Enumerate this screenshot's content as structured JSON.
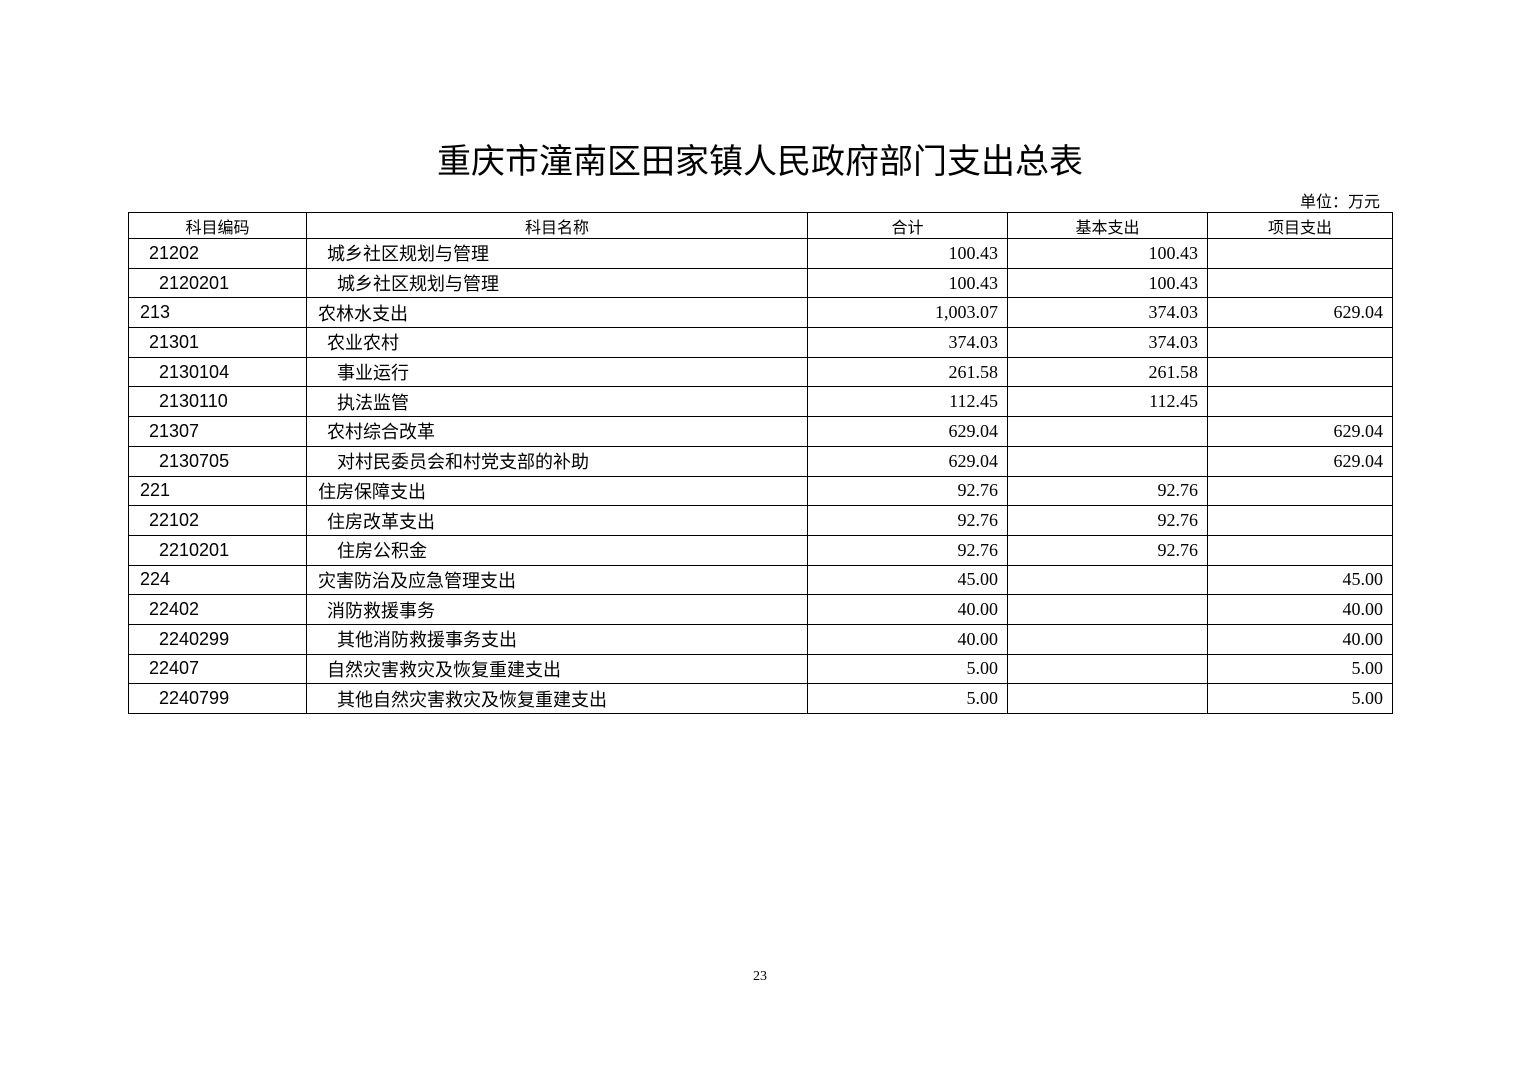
{
  "title": "重庆市潼南区田家镇人民政府部门支出总表",
  "unit": "单位：万元",
  "headers": [
    "科目编码",
    "科目名称",
    "合计",
    "基本支出",
    "项目支出"
  ],
  "rows": [
    {
      "level": 1,
      "code": "21202",
      "name": "城乡社区规划与管理",
      "total": "100.43",
      "basic": "100.43",
      "project": ""
    },
    {
      "level": 2,
      "code": "2120201",
      "name": "城乡社区规划与管理",
      "total": "100.43",
      "basic": "100.43",
      "project": ""
    },
    {
      "level": 0,
      "code": "213",
      "name": "农林水支出",
      "total": "1,003.07",
      "basic": "374.03",
      "project": "629.04"
    },
    {
      "level": 1,
      "code": "21301",
      "name": "农业农村",
      "total": "374.03",
      "basic": "374.03",
      "project": ""
    },
    {
      "level": 2,
      "code": "2130104",
      "name": "事业运行",
      "total": "261.58",
      "basic": "261.58",
      "project": ""
    },
    {
      "level": 2,
      "code": "2130110",
      "name": "执法监管",
      "total": "112.45",
      "basic": "112.45",
      "project": ""
    },
    {
      "level": 1,
      "code": "21307",
      "name": "农村综合改革",
      "total": "629.04",
      "basic": "",
      "project": "629.04"
    },
    {
      "level": 2,
      "code": "2130705",
      "name": "对村民委员会和村党支部的补助",
      "total": "629.04",
      "basic": "",
      "project": "629.04"
    },
    {
      "level": 0,
      "code": "221",
      "name": "住房保障支出",
      "total": "92.76",
      "basic": "92.76",
      "project": ""
    },
    {
      "level": 1,
      "code": "22102",
      "name": "住房改革支出",
      "total": "92.76",
      "basic": "92.76",
      "project": ""
    },
    {
      "level": 2,
      "code": "2210201",
      "name": "住房公积金",
      "total": "92.76",
      "basic": "92.76",
      "project": ""
    },
    {
      "level": 0,
      "code": "224",
      "name": "灾害防治及应急管理支出",
      "total": "45.00",
      "basic": "",
      "project": "45.00"
    },
    {
      "level": 1,
      "code": "22402",
      "name": "消防救援事务",
      "total": "40.00",
      "basic": "",
      "project": "40.00"
    },
    {
      "level": 2,
      "code": "2240299",
      "name": "其他消防救援事务支出",
      "total": "40.00",
      "basic": "",
      "project": "40.00"
    },
    {
      "level": 1,
      "code": "22407",
      "name": "自然灾害救灾及恢复重建支出",
      "total": "5.00",
      "basic": "",
      "project": "5.00"
    },
    {
      "level": 2,
      "code": "2240799",
      "name": "其他自然灾害救灾及恢复重建支出",
      "total": "5.00",
      "basic": "",
      "project": "5.00"
    }
  ],
  "page_number": "23"
}
